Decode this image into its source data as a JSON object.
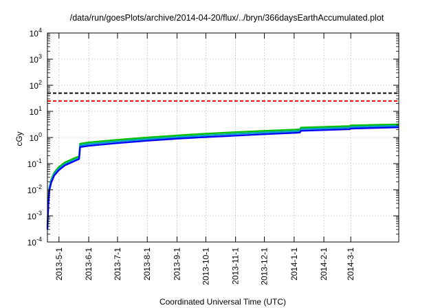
{
  "chart_data": {
    "type": "line",
    "title": "/data/run/goesPlots/archive/2014-04-20/flux/../bryn/366daysEarthAccumulated.plot",
    "xlabel": "Coordinated Universal Time (UTC)",
    "ylabel": "cGy",
    "y_scale": "log",
    "ylim": [
      0.0001,
      10000
    ],
    "xlim": [
      "2013-04-19",
      "2014-04-20"
    ],
    "y_ticks": [
      {
        "value": 0.0001,
        "base": "10",
        "exp": "-4"
      },
      {
        "value": 0.001,
        "base": "10",
        "exp": "-3"
      },
      {
        "value": 0.01,
        "base": "10",
        "exp": "-2"
      },
      {
        "value": 0.1,
        "base": "10",
        "exp": "-1"
      },
      {
        "value": 1,
        "base": "10",
        "exp": "0"
      },
      {
        "value": 10,
        "base": "10",
        "exp": "1"
      },
      {
        "value": 100,
        "base": "10",
        "exp": "2"
      },
      {
        "value": 1000,
        "base": "10",
        "exp": "3"
      },
      {
        "value": 10000,
        "base": "10",
        "exp": "4"
      }
    ],
    "x_ticks": [
      {
        "date": "2013-05-01",
        "label": "2013-5-1"
      },
      {
        "date": "2013-06-01",
        "label": "2013-6-1"
      },
      {
        "date": "2013-07-01",
        "label": "2013-7-1"
      },
      {
        "date": "2013-08-01",
        "label": "2013-8-1"
      },
      {
        "date": "2013-09-01",
        "label": "2013-9-1"
      },
      {
        "date": "2013-10-01",
        "label": "2013-10-1"
      },
      {
        "date": "2013-11-01",
        "label": "2013-11-1"
      },
      {
        "date": "2013-12-01",
        "label": "2013-12-1"
      },
      {
        "date": "2014-01-01",
        "label": "2014-1-1"
      },
      {
        "date": "2014-02-01",
        "label": "2014-2-1"
      },
      {
        "date": "2014-03-01",
        "label": "2014-3-1"
      }
    ],
    "grid": true,
    "reference_lines": [
      {
        "value": 50,
        "color": "#000000",
        "style": "dashed"
      },
      {
        "value": 25,
        "color": "#ff0000",
        "style": "dashed"
      }
    ],
    "series": [
      {
        "color": "#00c000",
        "points": [
          [
            "2013-04-19",
            0.0004
          ],
          [
            "2013-04-20",
            0.004
          ],
          [
            "2013-04-21",
            0.012
          ],
          [
            "2013-04-23",
            0.025
          ],
          [
            "2013-04-26",
            0.045
          ],
          [
            "2013-05-01",
            0.075
          ],
          [
            "2013-05-07",
            0.11
          ],
          [
            "2013-05-15",
            0.15
          ],
          [
            "2013-05-22",
            0.19
          ],
          [
            "2013-05-23",
            0.58
          ],
          [
            "2013-06-01",
            0.65
          ],
          [
            "2013-07-01",
            0.82
          ],
          [
            "2013-08-01",
            1.0
          ],
          [
            "2013-09-01",
            1.2
          ],
          [
            "2013-10-01",
            1.4
          ],
          [
            "2013-11-01",
            1.6
          ],
          [
            "2013-12-01",
            1.8
          ],
          [
            "2014-01-01",
            2.0
          ],
          [
            "2014-01-07",
            2.05
          ],
          [
            "2014-01-08",
            2.4
          ],
          [
            "2014-02-01",
            2.55
          ],
          [
            "2014-02-28",
            2.75
          ],
          [
            "2014-03-01",
            2.9
          ],
          [
            "2014-04-20",
            3.2
          ]
        ]
      },
      {
        "color": "#00a0c0",
        "points": [
          [
            "2013-04-19",
            0.00035
          ],
          [
            "2013-04-20",
            0.0035
          ],
          [
            "2013-04-21",
            0.011
          ],
          [
            "2013-04-23",
            0.022
          ],
          [
            "2013-04-26",
            0.04
          ],
          [
            "2013-05-01",
            0.065
          ],
          [
            "2013-05-07",
            0.095
          ],
          [
            "2013-05-15",
            0.13
          ],
          [
            "2013-05-22",
            0.165
          ],
          [
            "2013-05-23",
            0.5
          ],
          [
            "2013-06-01",
            0.56
          ],
          [
            "2013-07-01",
            0.71
          ],
          [
            "2013-08-01",
            0.87
          ],
          [
            "2013-09-01",
            1.04
          ],
          [
            "2013-10-01",
            1.2
          ],
          [
            "2013-11-01",
            1.38
          ],
          [
            "2013-12-01",
            1.56
          ],
          [
            "2014-01-01",
            1.72
          ],
          [
            "2014-01-07",
            1.78
          ],
          [
            "2014-01-08",
            2.1
          ],
          [
            "2014-02-01",
            2.22
          ],
          [
            "2014-02-28",
            2.4
          ],
          [
            "2014-03-01",
            2.52
          ],
          [
            "2014-04-20",
            2.8
          ]
        ]
      },
      {
        "color": "#0000ff",
        "points": [
          [
            "2013-04-19",
            0.0003
          ],
          [
            "2013-04-20",
            0.003
          ],
          [
            "2013-04-21",
            0.0095
          ],
          [
            "2013-04-23",
            0.019
          ],
          [
            "2013-04-26",
            0.035
          ],
          [
            "2013-05-01",
            0.057
          ],
          [
            "2013-05-07",
            0.085
          ],
          [
            "2013-05-15",
            0.115
          ],
          [
            "2013-05-22",
            0.15
          ],
          [
            "2013-05-23",
            0.43
          ],
          [
            "2013-06-01",
            0.48
          ],
          [
            "2013-07-01",
            0.61
          ],
          [
            "2013-08-01",
            0.75
          ],
          [
            "2013-09-01",
            0.9
          ],
          [
            "2013-10-01",
            1.04
          ],
          [
            "2013-11-01",
            1.18
          ],
          [
            "2013-12-01",
            1.34
          ],
          [
            "2014-01-01",
            1.5
          ],
          [
            "2014-01-07",
            1.55
          ],
          [
            "2014-01-08",
            1.8
          ],
          [
            "2014-02-01",
            1.92
          ],
          [
            "2014-02-28",
            2.08
          ],
          [
            "2014-03-01",
            2.2
          ],
          [
            "2014-04-20",
            2.45
          ]
        ]
      }
    ]
  }
}
